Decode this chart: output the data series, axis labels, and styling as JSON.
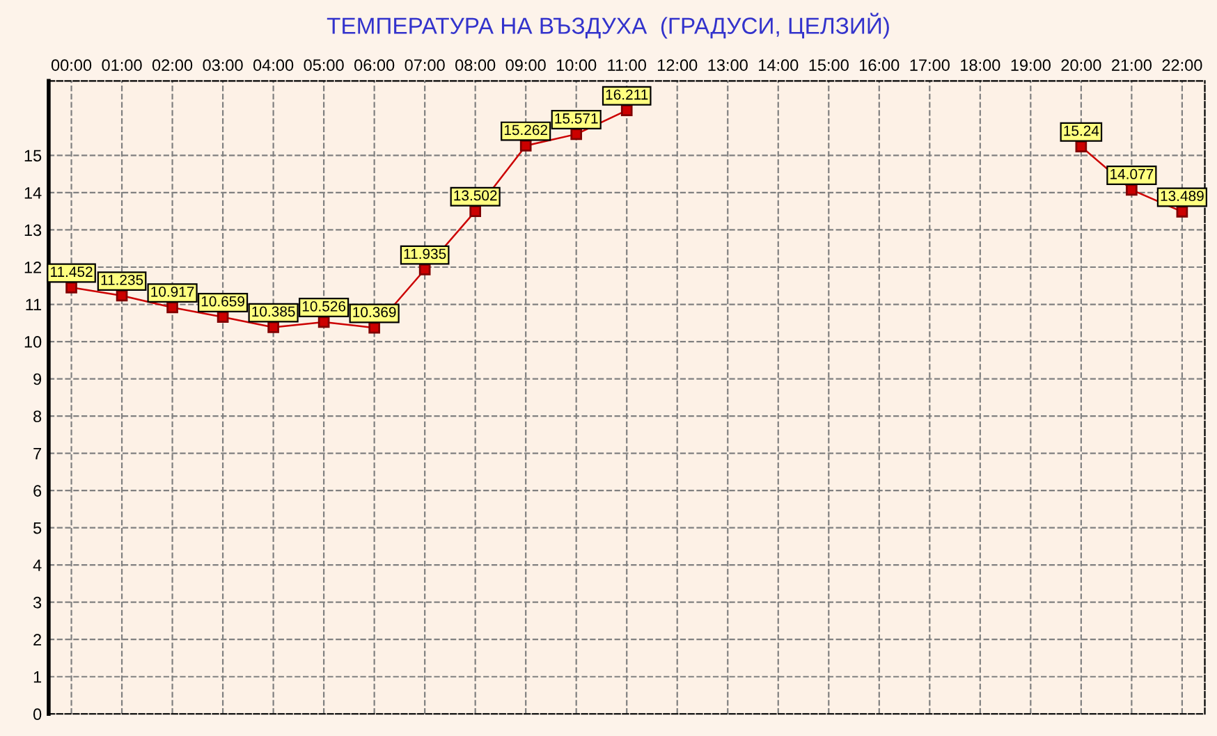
{
  "chart_data": {
    "type": "line",
    "title": "ТЕМПЕРАТУРА НА ВЪЗДУХА  (ГРАДУСИ, ЦЕЛЗИЙ)",
    "categories": [
      "00:00",
      "01:00",
      "02:00",
      "03:00",
      "04:00",
      "05:00",
      "06:00",
      "07:00",
      "08:00",
      "09:00",
      "10:00",
      "11:00",
      "12:00",
      "13:00",
      "14:00",
      "15:00",
      "16:00",
      "17:00",
      "18:00",
      "19:00",
      "20:00",
      "21:00",
      "22:00"
    ],
    "series": [
      {
        "color": "#cc0000",
        "values": [
          11.452,
          11.235,
          10.917,
          10.659,
          10.385,
          10.526,
          10.369,
          11.935,
          13.502,
          15.262,
          15.571,
          16.211,
          null,
          null,
          null,
          null,
          null,
          null,
          null,
          null,
          15.24,
          14.077,
          13.489
        ]
      }
    ],
    "ylim": [
      0,
      17
    ],
    "yticks": [
      0,
      1,
      2,
      3,
      4,
      5,
      6,
      7,
      8,
      9,
      10,
      11,
      12,
      13,
      14,
      15
    ],
    "grid": true,
    "marker": "square",
    "line_style": "solid",
    "data_labels": true
  }
}
